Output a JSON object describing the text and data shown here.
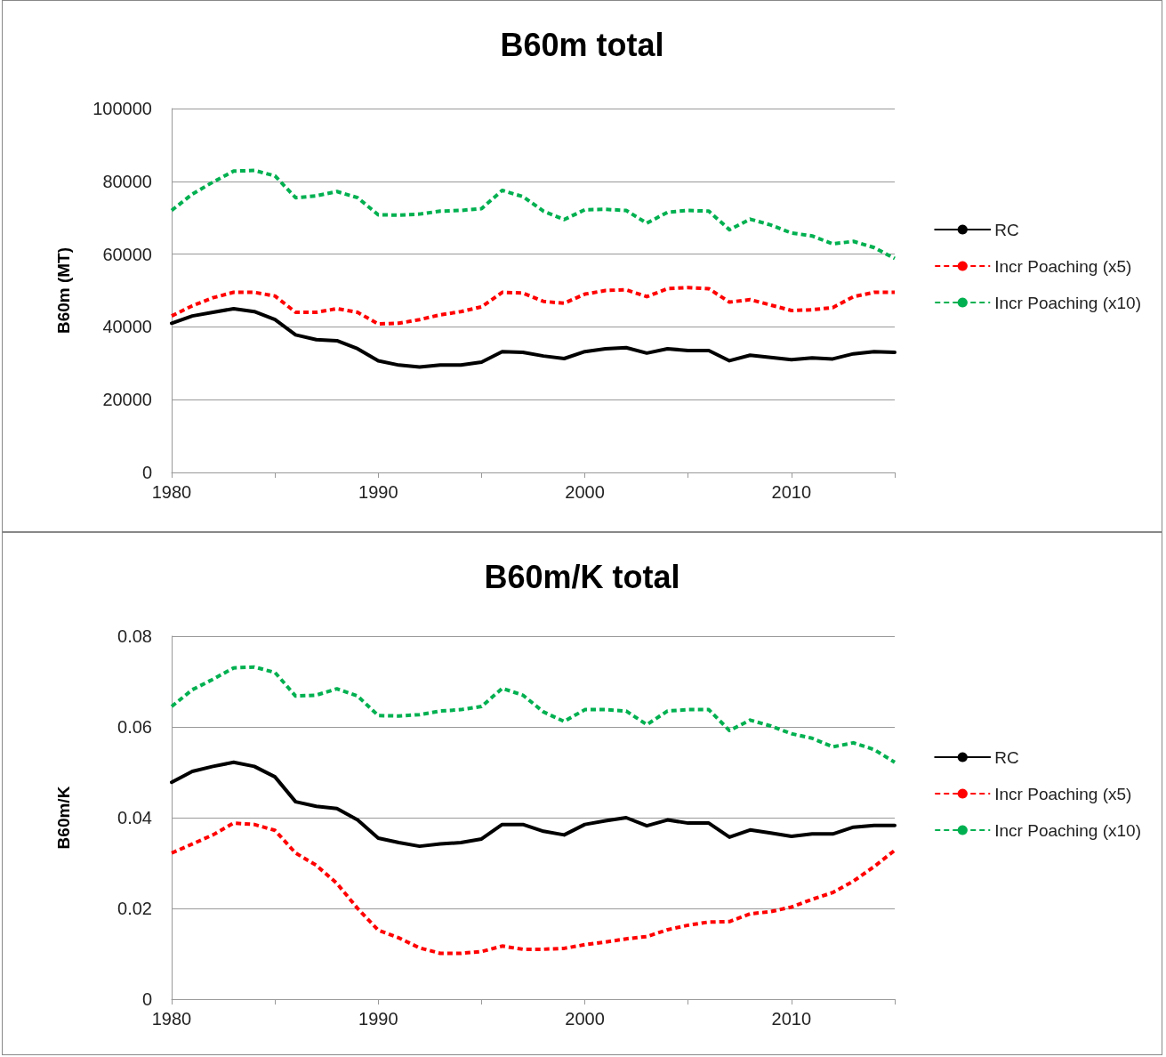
{
  "chart_data": [
    {
      "type": "line",
      "title": "B60m total",
      "ylabel": "B60m (MT)",
      "x": [
        1980,
        1981,
        1982,
        1983,
        1984,
        1985,
        1986,
        1987,
        1988,
        1989,
        1990,
        1991,
        1992,
        1993,
        1994,
        1995,
        1996,
        1997,
        1998,
        1999,
        2000,
        2001,
        2002,
        2003,
        2004,
        2005,
        2006,
        2007,
        2008,
        2009,
        2010,
        2011,
        2012,
        2013,
        2014,
        2015
      ],
      "xlim": [
        1980,
        2015
      ],
      "xticks": [
        1980,
        {
          "value": 1985,
          "label": null
        },
        1990,
        {
          "value": 1995,
          "label": null
        },
        2000,
        {
          "value": 2005,
          "label": null
        },
        2010,
        {
          "value": 2015,
          "label": null
        }
      ],
      "ylim": [
        0,
        100000
      ],
      "yticks": [
        0,
        20000,
        40000,
        60000,
        80000,
        100000
      ],
      "grid": "y",
      "legend": "right",
      "marker": "none",
      "series": [
        {
          "name": "RC",
          "color": "#000000",
          "line_style": "solid",
          "values": [
            41000,
            43000,
            44000,
            45000,
            44200,
            42000,
            37800,
            36500,
            36200,
            34000,
            30700,
            29500,
            29000,
            29500,
            29500,
            30300,
            33200,
            33000,
            32000,
            31300,
            33200,
            34000,
            34300,
            32800,
            34000,
            33500,
            33500,
            30700,
            32200,
            31600,
            31000,
            31500,
            31200,
            32600,
            33200,
            33000
          ]
        },
        {
          "name": "Incr Poaching (x5)",
          "color": "#ff0000",
          "line_style": "dashed",
          "values": [
            43000,
            45800,
            48000,
            49500,
            49500,
            48500,
            44000,
            44000,
            45000,
            44000,
            40800,
            41000,
            42000,
            43300,
            44200,
            45500,
            49500,
            49300,
            47000,
            46500,
            49000,
            50000,
            50200,
            48300,
            50500,
            50800,
            50500,
            46800,
            47500,
            46000,
            44500,
            44700,
            45300,
            48300,
            49500,
            49500
          ]
        },
        {
          "name": "Incr Poaching (x10)",
          "color": "#00b050",
          "line_style": "dashed",
          "values": [
            72000,
            76500,
            79800,
            82800,
            83000,
            81500,
            75500,
            76000,
            77200,
            75500,
            70800,
            70700,
            71000,
            71800,
            72000,
            72500,
            77500,
            75800,
            71800,
            69500,
            72200,
            72300,
            72000,
            68500,
            71500,
            72000,
            71800,
            66700,
            69600,
            68000,
            65800,
            65000,
            62800,
            63500,
            61800,
            58800
          ]
        }
      ]
    },
    {
      "type": "line",
      "title": "B60m/K total",
      "ylabel": "B60m/K",
      "x": [
        1980,
        1981,
        1982,
        1983,
        1984,
        1985,
        1986,
        1987,
        1988,
        1989,
        1990,
        1991,
        1992,
        1993,
        1994,
        1995,
        1996,
        1997,
        1998,
        1999,
        2000,
        2001,
        2002,
        2003,
        2004,
        2005,
        2006,
        2007,
        2008,
        2009,
        2010,
        2011,
        2012,
        2013,
        2014,
        2015
      ],
      "xlim": [
        1980,
        2015
      ],
      "xticks": [
        1980,
        {
          "value": 1985,
          "label": null
        },
        1990,
        {
          "value": 1995,
          "label": null
        },
        2000,
        {
          "value": 2005,
          "label": null
        },
        2010,
        {
          "value": 2015,
          "label": null
        }
      ],
      "ylim": [
        0,
        0.08
      ],
      "yticks": [
        0,
        0.02,
        0.04,
        0.06,
        0.08
      ],
      "grid": "y",
      "legend": "right",
      "marker": "none",
      "series": [
        {
          "name": "RC",
          "color": "#000000",
          "line_style": "solid",
          "values": [
            0.0478,
            0.0502,
            0.0513,
            0.0522,
            0.0513,
            0.049,
            0.0435,
            0.0425,
            0.042,
            0.0395,
            0.0355,
            0.0345,
            0.0337,
            0.0342,
            0.0345,
            0.0353,
            0.0385,
            0.0385,
            0.037,
            0.0362,
            0.0385,
            0.0393,
            0.04,
            0.0382,
            0.0395,
            0.0388,
            0.0388,
            0.0357,
            0.0373,
            0.0366,
            0.0359,
            0.0364,
            0.0364,
            0.0379,
            0.0383,
            0.0383
          ]
        },
        {
          "name": "Incr Poaching (x5)",
          "color": "#ff0000",
          "line_style": "dashed",
          "values": [
            0.0322,
            0.0342,
            0.0362,
            0.0388,
            0.0385,
            0.0372,
            0.0322,
            0.0295,
            0.0255,
            0.02,
            0.0152,
            0.0135,
            0.0113,
            0.0101,
            0.0101,
            0.0105,
            0.0117,
            0.011,
            0.011,
            0.0112,
            0.012,
            0.0126,
            0.0133,
            0.0138,
            0.0153,
            0.0163,
            0.017,
            0.0171,
            0.0188,
            0.0193,
            0.0203,
            0.022,
            0.0235,
            0.026,
            0.0292,
            0.0328
          ]
        },
        {
          "name": "Incr Poaching (x10)",
          "color": "#00b050",
          "line_style": "dashed",
          "values": [
            0.0645,
            0.0682,
            0.0705,
            0.073,
            0.0732,
            0.072,
            0.0668,
            0.067,
            0.0684,
            0.0668,
            0.0625,
            0.0624,
            0.0627,
            0.0635,
            0.0638,
            0.0645,
            0.0685,
            0.067,
            0.0633,
            0.0612,
            0.0638,
            0.0638,
            0.0635,
            0.0605,
            0.0635,
            0.0638,
            0.0638,
            0.0592,
            0.0615,
            0.0602,
            0.0585,
            0.0575,
            0.0556,
            0.0565,
            0.055,
            0.0522
          ]
        }
      ]
    }
  ]
}
